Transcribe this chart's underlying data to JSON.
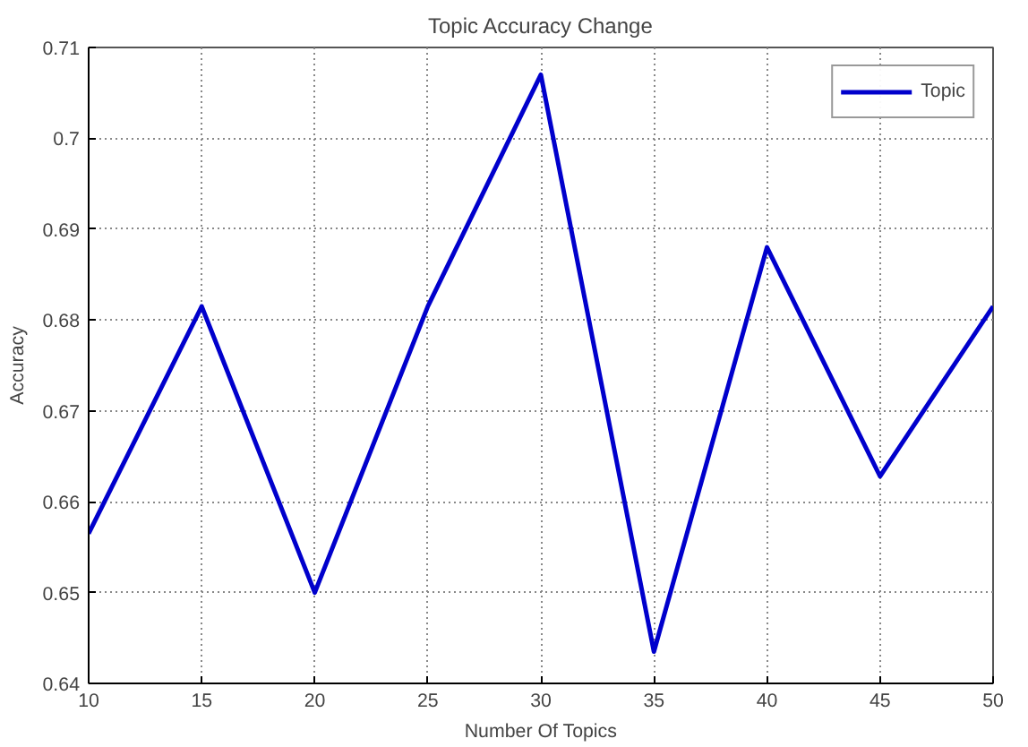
{
  "chart_data": {
    "type": "line",
    "title": "Topic Accuracy Change",
    "xlabel": "Number Of Topics",
    "ylabel": "Accuracy",
    "x": [
      10,
      15,
      20,
      25,
      30,
      35,
      40,
      45,
      50
    ],
    "series": [
      {
        "name": "Topic",
        "color": "#0000cc",
        "values": [
          0.6565,
          0.6815,
          0.65,
          0.6815,
          0.707,
          0.6435,
          0.688,
          0.6628,
          0.6815
        ]
      }
    ],
    "xlim": [
      10,
      50
    ],
    "ylim": [
      0.64,
      0.71
    ],
    "xticks": [
      10,
      15,
      20,
      25,
      30,
      35,
      40,
      45,
      50
    ],
    "yticks": [
      0.64,
      0.65,
      0.66,
      0.67,
      0.68,
      0.69,
      0.7,
      0.71
    ],
    "grid": true,
    "legend": "top right",
    "line_style": "solid",
    "marker": "none"
  }
}
